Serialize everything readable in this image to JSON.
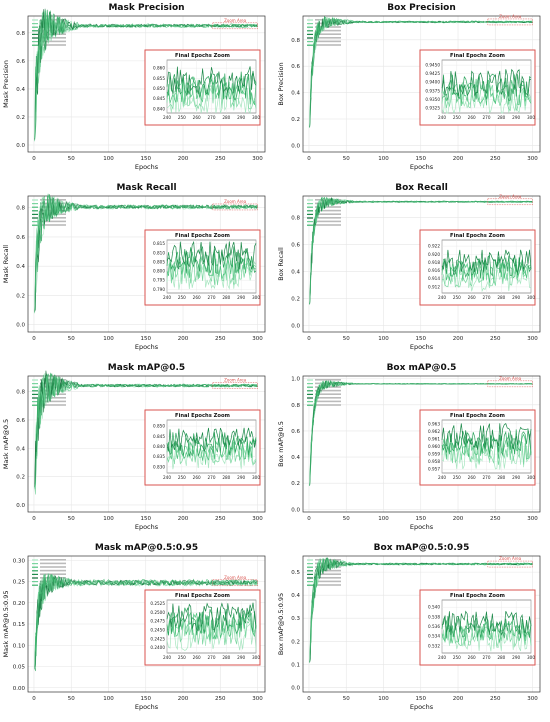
{
  "zoom_title": "Final Epochs Zoom",
  "zoom_area_label": "Zoom Area",
  "colors": {
    "zoom_box": "#d9534f",
    "series": [
      "#a8e6c1",
      "#7bd6a0",
      "#4fc27d",
      "#2ea55e",
      "#1d8a4a",
      "#0f6b36",
      "#6fcf97",
      "#3bb36b"
    ],
    "grid": "#e6e6e6"
  },
  "chart_data": [
    {
      "id": "mask-precision",
      "type": "line",
      "title": "Mask Precision",
      "xlabel": "Epochs",
      "ylabel": "Mask Precision",
      "xlim": [
        -8,
        310
      ],
      "ylim": [
        -0.05,
        0.92
      ],
      "xticks": [
        0,
        50,
        100,
        150,
        200,
        250,
        300
      ],
      "yticks": [
        0.0,
        0.2,
        0.4,
        0.6,
        0.8
      ],
      "final": 0.85,
      "early_amp": 0.28,
      "zoom": {
        "xlim": [
          240,
          300
        ],
        "ylim": [
          0.838,
          0.864
        ],
        "yticks": [
          "0.860",
          "0.855",
          "0.850",
          "0.845",
          "0.840"
        ],
        "base": 0.849,
        "amp": 0.007
      }
    },
    {
      "id": "box-precision",
      "type": "line",
      "title": "Box Precision",
      "xlabel": "Epochs",
      "ylabel": "Box Precision",
      "xlim": [
        -8,
        310
      ],
      "ylim": [
        -0.05,
        0.98
      ],
      "xticks": [
        0,
        50,
        100,
        150,
        200,
        250,
        300
      ],
      "yticks": [
        0.0,
        0.2,
        0.4,
        0.6,
        0.8
      ],
      "final": 0.935,
      "early_amp": 0.12,
      "zoom": {
        "xlim": [
          240,
          300
        ],
        "ylim": [
          0.931,
          0.9465
        ],
        "yticks": [
          "0.9450",
          "0.9425",
          "0.9400",
          "0.9375",
          "0.9350",
          "0.9325"
        ],
        "base": 0.937,
        "amp": 0.004
      }
    },
    {
      "id": "mask-recall",
      "type": "line",
      "title": "Mask Recall",
      "xlabel": "Epochs",
      "ylabel": "Mask Recall",
      "xlim": [
        -8,
        310
      ],
      "ylim": [
        -0.05,
        0.88
      ],
      "xticks": [
        0,
        50,
        100,
        150,
        200,
        250,
        300
      ],
      "yticks": [
        0.0,
        0.2,
        0.4,
        0.6,
        0.8
      ],
      "final": 0.805,
      "early_amp": 0.22,
      "zoom": {
        "xlim": [
          240,
          300
        ],
        "ylim": [
          0.788,
          0.817
        ],
        "yticks": [
          "0.815",
          "0.810",
          "0.805",
          "0.800",
          "0.795",
          "0.790"
        ],
        "base": 0.803,
        "amp": 0.008
      }
    },
    {
      "id": "box-recall",
      "type": "line",
      "title": "Box Recall",
      "xlabel": "Epochs",
      "ylabel": "Box Recall",
      "xlim": [
        -8,
        310
      ],
      "ylim": [
        -0.05,
        0.96
      ],
      "xticks": [
        0,
        50,
        100,
        150,
        200,
        250,
        300
      ],
      "yticks": [
        0.0,
        0.2,
        0.4,
        0.6,
        0.8
      ],
      "final": 0.917,
      "early_amp": 0.1,
      "zoom": {
        "xlim": [
          240,
          300
        ],
        "ylim": [
          0.9105,
          0.9235
        ],
        "yticks": [
          "0.922",
          "0.920",
          "0.918",
          "0.916",
          "0.914",
          "0.912"
        ],
        "base": 0.916,
        "amp": 0.003
      }
    },
    {
      "id": "mask-map50",
      "type": "line",
      "title": "Mask mAP@0.5",
      "xlabel": "Epochs",
      "ylabel": "Mask mAP@0.5",
      "xlim": [
        -8,
        310
      ],
      "ylim": [
        -0.05,
        0.91
      ],
      "xticks": [
        0,
        50,
        100,
        150,
        200,
        250,
        300
      ],
      "yticks": [
        0.0,
        0.2,
        0.4,
        0.6,
        0.8
      ],
      "final": 0.842,
      "early_amp": 0.25,
      "zoom": {
        "xlim": [
          240,
          300
        ],
        "ylim": [
          0.827,
          0.853
        ],
        "yticks": [
          "0.850",
          "0.845",
          "0.840",
          "0.835",
          "0.830"
        ],
        "base": 0.839,
        "amp": 0.006
      }
    },
    {
      "id": "box-map50",
      "type": "line",
      "title": "Box mAP@0.5",
      "xlabel": "Epochs",
      "ylabel": "Box mAP@0.5",
      "xlim": [
        -8,
        310
      ],
      "ylim": [
        -0.02,
        1.02
      ],
      "xticks": [
        0,
        50,
        100,
        150,
        200,
        250,
        300
      ],
      "yticks": [
        0.0,
        0.2,
        0.4,
        0.6,
        0.8,
        1.0
      ],
      "final": 0.96,
      "early_amp": 0.08,
      "zoom": {
        "xlim": [
          240,
          300
        ],
        "ylim": [
          0.9565,
          0.9635
        ],
        "yticks": [
          "0.963",
          "0.962",
          "0.961",
          "0.960",
          "0.959",
          "0.958",
          "0.957"
        ],
        "base": 0.96,
        "amp": 0.0018
      }
    },
    {
      "id": "mask-map5095",
      "type": "line",
      "title": "Mask mAP@0.5:0.95",
      "xlabel": "Epochs",
      "ylabel": "Mask mAP@0.5:0.95",
      "xlim": [
        -8,
        310
      ],
      "ylim": [
        -0.01,
        0.31
      ],
      "xticks": [
        0,
        50,
        100,
        150,
        200,
        250,
        300
      ],
      "yticks": [
        0.0,
        0.05,
        0.1,
        0.15,
        0.2,
        0.25,
        0.3
      ],
      "final": 0.247,
      "early_amp": 0.06,
      "zoom": {
        "xlim": [
          240,
          300
        ],
        "ylim": [
          0.2385,
          0.2535
        ],
        "yticks": [
          "0.2525",
          "0.2500",
          "0.2475",
          "0.2450",
          "0.2425",
          "0.2400"
        ],
        "base": 0.246,
        "amp": 0.004
      }
    },
    {
      "id": "box-map5095",
      "type": "line",
      "title": "Box mAP@0.5:0.95",
      "xlabel": "Epochs",
      "ylabel": "Box mAP@0.5:0.95",
      "xlim": [
        -8,
        310
      ],
      "ylim": [
        -0.02,
        0.57
      ],
      "xticks": [
        0,
        50,
        100,
        150,
        200,
        250,
        300
      ],
      "yticks": [
        0.0,
        0.1,
        0.2,
        0.3,
        0.4,
        0.5
      ],
      "final": 0.535,
      "early_amp": 0.08,
      "zoom": {
        "xlim": [
          240,
          300
        ],
        "ylim": [
          0.5305,
          0.5415
        ],
        "yticks": [
          "0.540",
          "0.538",
          "0.536",
          "0.534",
          "0.532"
        ],
        "base": 0.535,
        "amp": 0.0025
      }
    }
  ]
}
